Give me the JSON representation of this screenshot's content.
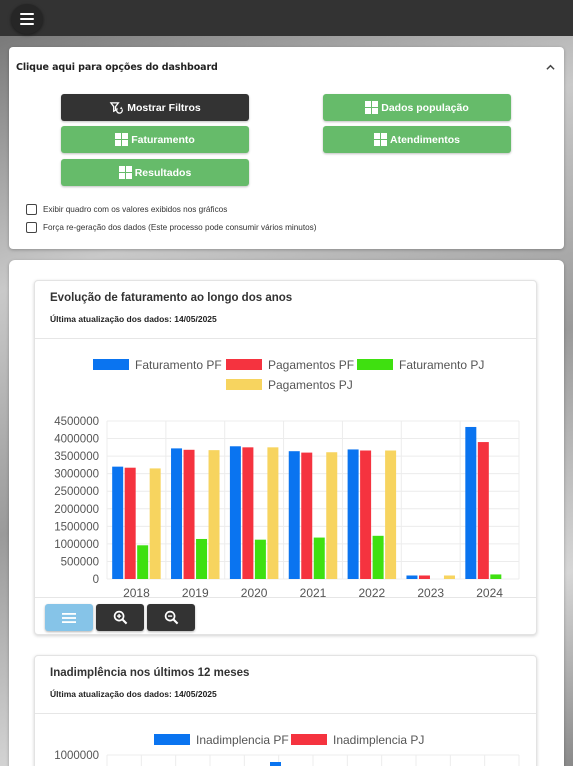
{
  "header": {
    "menu_icon": "hamburger-menu-icon"
  },
  "options": {
    "title": "Clique aqui para opções do dashboard",
    "collapse_icon": "chevron-up-icon",
    "buttons": {
      "filters": "Mostrar Filtros",
      "population": "Dados população",
      "billing": "Faturamento",
      "attendance": "Atendimentos",
      "results": "Resultados"
    },
    "checkboxes": {
      "show_values": "Exibir quadro com os valores exibidos nos gráficos",
      "force_regen": "Força re-geração dos dados (Este processo pode consumir vários minutos)"
    }
  },
  "colors": {
    "green": "#66bb6a",
    "dark": "#333333",
    "blue": "#0a74f0",
    "red": "#f5333f",
    "lime": "#3fe010",
    "yellow": "#f7d45f"
  },
  "charts": {
    "billing": {
      "title": "Evolução de faturamento ao longo dos anos",
      "updated": "Última atualização dos dados: 14/05/2025"
    },
    "default": {
      "title": "Inadimplência nos últimos 12 meses",
      "updated": "Última atualização dos dados: 14/05/2025"
    }
  },
  "chart_data": [
    {
      "type": "bar",
      "categories": [
        "2018",
        "2019",
        "2020",
        "2021",
        "2022",
        "2023",
        "2024"
      ],
      "series": [
        {
          "name": "Faturamento PF",
          "color": "#0a74f0",
          "values": [
            3200000,
            3720000,
            3780000,
            3640000,
            3690000,
            100000,
            4330000
          ]
        },
        {
          "name": "Pagamentos PF",
          "color": "#f5333f",
          "values": [
            3170000,
            3680000,
            3750000,
            3600000,
            3660000,
            100000,
            3900000
          ]
        },
        {
          "name": "Faturamento PJ",
          "color": "#3fe010",
          "values": [
            960000,
            1140000,
            1120000,
            1180000,
            1230000,
            0,
            130000
          ]
        },
        {
          "name": "Pagamentos PJ",
          "color": "#f7d45f",
          "values": [
            3150000,
            3670000,
            3750000,
            3610000,
            3660000,
            100000,
            0
          ]
        }
      ],
      "yticks": [
        "4500000",
        "4000000",
        "3500000",
        "3000000",
        "2500000",
        "2000000",
        "1500000",
        "1000000",
        "500000",
        "0"
      ],
      "ylim": [
        0,
        4500000
      ],
      "legend": "top",
      "grid": true
    },
    {
      "type": "bar",
      "series": [
        {
          "name": "Inadimplencia PF",
          "color": "#0a74f0"
        },
        {
          "name": "Inadimplencia PJ",
          "color": "#f5333f"
        }
      ],
      "yticks": [
        "1000000"
      ],
      "legend": "top",
      "grid": true
    }
  ],
  "toolbar_icons": [
    "list-icon",
    "zoom-in-icon",
    "zoom-out-icon"
  ]
}
